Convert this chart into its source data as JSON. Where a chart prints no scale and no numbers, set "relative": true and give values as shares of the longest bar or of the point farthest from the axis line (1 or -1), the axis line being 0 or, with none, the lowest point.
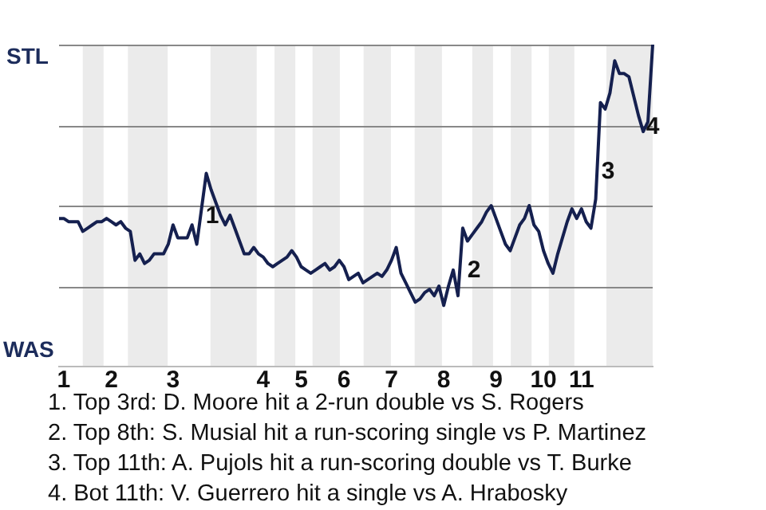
{
  "chart_data": {
    "type": "line",
    "marker": "none",
    "line_style": "solid",
    "legend": false,
    "relative": true,
    "categories": [
      null,
      "1",
      null,
      null,
      null,
      null,
      null,
      null,
      null,
      null,
      null,
      "2",
      null,
      null,
      null,
      null,
      null,
      null,
      null,
      null,
      null,
      null,
      null,
      null,
      "3",
      null,
      null,
      null,
      null,
      null,
      null,
      null,
      null,
      null,
      null,
      null,
      null,
      null,
      null,
      null,
      null,
      null,
      null,
      "4",
      null,
      null,
      null,
      null,
      null,
      null,
      null,
      "5",
      null,
      null,
      null,
      null,
      null,
      null,
      null,
      null,
      "6",
      null,
      null,
      null,
      null,
      null,
      null,
      null,
      null,
      null,
      "7",
      null,
      null,
      null,
      null,
      null,
      null,
      null,
      null,
      null,
      null,
      "8",
      null,
      null,
      null,
      null,
      null,
      null,
      null,
      null,
      null,
      null,
      "9",
      null,
      null,
      null,
      null,
      null,
      null,
      null,
      null,
      null,
      "10",
      null,
      null,
      null,
      null,
      null,
      null,
      null,
      "11",
      null,
      null,
      null,
      null,
      null,
      null,
      null,
      null,
      null,
      null,
      null,
      null,
      null,
      null,
      null
    ],
    "series": [
      {
        "color": "#15204f",
        "values": [
          0.46,
          0.46,
          0.45,
          0.45,
          0.45,
          0.42,
          0.43,
          0.44,
          0.45,
          0.45,
          0.46,
          0.45,
          0.44,
          0.45,
          0.43,
          0.42,
          0.33,
          0.35,
          0.32,
          0.33,
          0.35,
          0.35,
          0.35,
          0.38,
          0.44,
          0.4,
          0.4,
          0.4,
          0.44,
          0.38,
          0.49,
          0.6,
          0.55,
          0.51,
          0.47,
          0.44,
          0.47,
          0.43,
          0.39,
          0.35,
          0.35,
          0.37,
          0.35,
          0.34,
          0.32,
          0.31,
          0.32,
          0.33,
          0.34,
          0.36,
          0.34,
          0.31,
          0.3,
          0.29,
          0.3,
          0.31,
          0.32,
          0.3,
          0.31,
          0.33,
          0.31,
          0.27,
          0.28,
          0.29,
          0.26,
          0.27,
          0.28,
          0.29,
          0.28,
          0.3,
          0.33,
          0.37,
          0.29,
          0.26,
          0.23,
          0.2,
          0.21,
          0.23,
          0.24,
          0.22,
          0.25,
          0.19,
          0.25,
          0.3,
          0.22,
          0.43,
          0.39,
          0.41,
          0.43,
          0.45,
          0.48,
          0.5,
          0.46,
          0.42,
          0.38,
          0.36,
          0.4,
          0.44,
          0.46,
          0.5,
          0.44,
          0.42,
          0.36,
          0.32,
          0.29,
          0.35,
          0.4,
          0.45,
          0.49,
          0.46,
          0.49,
          0.45,
          0.43,
          0.52,
          0.82,
          0.8,
          0.85,
          0.95,
          0.91,
          0.91,
          0.9,
          0.84,
          0.78,
          0.73,
          0.76,
          1
        ]
      }
    ],
    "ref_lines": [
      {
        "axis": "y",
        "value": 0.25,
        "color": "#888888"
      },
      {
        "axis": "y",
        "value": 0.5,
        "color": "#888888"
      },
      {
        "axis": "y",
        "value": 0.75,
        "color": "#888888"
      },
      {
        "axis": "y",
        "value": 1,
        "color": "#888888"
      }
    ],
    "annotations": [
      "STL",
      "WAS",
      "1",
      "2",
      "3",
      "4",
      "1. Top 3rd: D. Moore hit a 2-run double vs S. Rogers",
      "2. Top 8th: S. Musial hit a run-scoring single vs P. Martinez",
      "3. Top 11th: A. Pujols hit a run-scoring double vs T. Burke",
      "4. Bot 11th: V. Guerrero hit a single vs A. Hrabosky"
    ]
  }
}
